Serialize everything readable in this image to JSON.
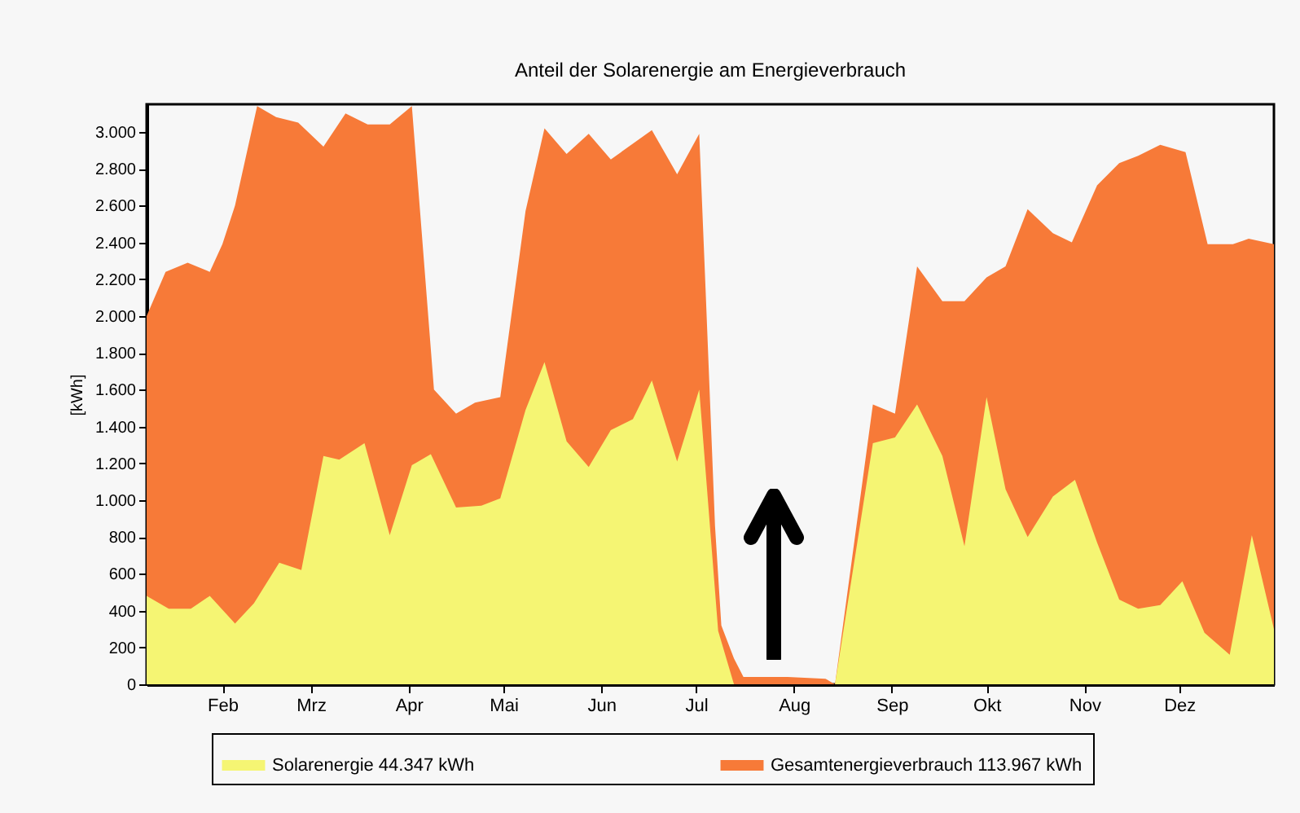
{
  "chart_data": {
    "type": "area",
    "title": "Anteil der Solarenergie am Energieverbrauch",
    "ylabel": "[kWh]",
    "xlim": [
      "--01-08",
      "--12-31"
    ],
    "xticks": [
      {
        "value": "--02-01",
        "label": "Feb"
      },
      {
        "value": "--03-01",
        "label": "Mrz"
      },
      {
        "value": "--04-01",
        "label": "Apr"
      },
      {
        "value": "--05-01",
        "label": "Mai"
      },
      {
        "value": "--06-01",
        "label": "Jun"
      },
      {
        "value": "--07-01",
        "label": "Jul"
      },
      {
        "value": "--08-01",
        "label": "Aug"
      },
      {
        "value": "--09-01",
        "label": "Sep"
      },
      {
        "value": "--10-01",
        "label": "Okt"
      },
      {
        "value": "--11-01",
        "label": "Nov"
      },
      {
        "value": "--12-01",
        "label": "Dez"
      }
    ],
    "ylim": [
      0,
      3150
    ],
    "yticks": [
      0,
      200,
      400,
      600,
      800,
      {
        "value": 1000,
        "label": "1.000"
      },
      {
        "value": 1200,
        "label": "1.200"
      },
      {
        "value": 1400,
        "label": "1.400"
      },
      {
        "value": 1600,
        "label": "1.600"
      },
      {
        "value": 1800,
        "label": "1.800"
      },
      {
        "value": 2000,
        "label": "2.000"
      },
      {
        "value": 2200,
        "label": "2.200"
      },
      {
        "value": 2400,
        "label": "2.400"
      },
      {
        "value": 2600,
        "label": "2.600"
      },
      {
        "value": 2800,
        "label": "2.800"
      },
      {
        "value": 3000,
        "label": "3.000"
      }
    ],
    "legend": "bottom",
    "grid": false,
    "series": [
      {
        "name": "Solarenergie 44.347 kWh",
        "color": "#f5f573",
        "x": [
          "--01-08",
          "--01-15",
          "--01-22",
          "--01-28",
          "--02-05",
          "--02-11",
          "--02-19",
          "--02-26",
          "--03-05",
          "--03-10",
          "--03-18",
          "--03-26",
          "--04-02",
          "--04-08",
          "--04-16",
          "--04-24",
          "--04-30",
          "--05-08",
          "--05-14",
          "--05-21",
          "--05-28",
          "--06-04",
          "--06-11",
          "--06-17",
          "--06-25",
          "--07-02",
          "--07-08",
          "--07-13",
          "--08-14",
          "--08-26",
          "--09-02",
          "--09-09",
          "--09-17",
          "--09-24",
          "--10-01",
          "--10-07",
          "--10-14",
          "--10-22",
          "--10-29",
          "--11-05",
          "--11-12",
          "--11-18",
          "--11-25",
          "--12-02",
          "--12-09",
          "--12-17",
          "--12-24",
          "--12-31"
        ],
        "values": [
          480,
          410,
          410,
          480,
          330,
          440,
          660,
          620,
          1240,
          1220,
          1310,
          810,
          1190,
          1250,
          960,
          970,
          1010,
          1490,
          1750,
          1320,
          1180,
          1380,
          1440,
          1650,
          1210,
          1600,
          290,
          0,
          0,
          1310,
          1340,
          1520,
          1240,
          750,
          1560,
          1060,
          800,
          1020,
          1110,
          770,
          460,
          410,
          430,
          560,
          280,
          160,
          810,
          300
        ]
      },
      {
        "name": "Gesamtenergieverbrauch 113.967 kWh",
        "color": "#f77a38",
        "x": [
          "--01-08",
          "--01-14",
          "--01-21",
          "--01-28",
          "--02-01",
          "--02-05",
          "--02-12",
          "--02-18",
          "--02-25",
          "--03-05",
          "--03-12",
          "--03-19",
          "--03-26",
          "--04-02",
          "--04-09",
          "--04-16",
          "--04-22",
          "--04-30",
          "--05-08",
          "--05-14",
          "--05-21",
          "--05-28",
          "--06-04",
          "--06-17",
          "--06-25",
          "--07-02",
          "--07-04",
          "--07-07",
          "--07-09",
          "--07-13",
          "--07-16",
          "--07-30",
          "--08-11",
          "--08-14",
          "--08-26",
          "--09-02",
          "--09-09",
          "--09-17",
          "--09-24",
          "--10-01",
          "--10-07",
          "--10-14",
          "--10-22",
          "--10-28",
          "--11-05",
          "--11-12",
          "--11-18",
          "--11-25",
          "--12-03",
          "--12-10",
          "--12-18",
          "--12-23",
          "--12-31"
        ],
        "values": [
          2000,
          2240,
          2290,
          2240,
          2390,
          2600,
          3140,
          3080,
          3050,
          2920,
          3100,
          3040,
          3040,
          3140,
          1600,
          1470,
          1530,
          1560,
          2570,
          3020,
          2880,
          2990,
          2850,
          3010,
          2770,
          2990,
          2150,
          860,
          320,
          140,
          40,
          40,
          30,
          0,
          1520,
          1470,
          2270,
          2080,
          2080,
          2210,
          2270,
          2580,
          2450,
          2400,
          2710,
          2830,
          2870,
          2930,
          2890,
          2390,
          2390,
          2420,
          2390
        ]
      }
    ]
  }
}
